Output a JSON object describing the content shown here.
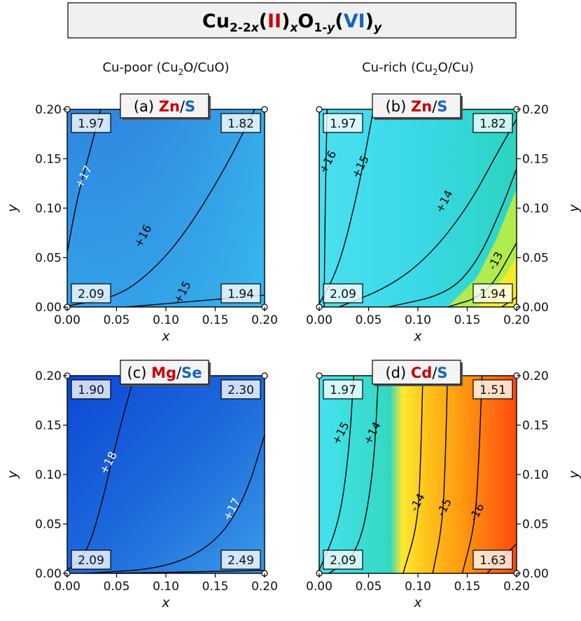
{
  "title": {
    "base1": "Cu",
    "sub1": "2-2",
    "subx": "x",
    "ii": "II",
    "mid": "O",
    "sub2": "1-",
    "suby": "y",
    "vi": "VI",
    "suby2": "y"
  },
  "columns": {
    "left": {
      "text": "Cu-poor (Cu",
      "sub": "2",
      "rest": "O/CuO)"
    },
    "right": {
      "text": "Cu-rich (Cu",
      "sub": "2",
      "rest": "O/Cu)"
    }
  },
  "colors": {
    "ii": "#c8000a",
    "vi": "#1565c0"
  },
  "chart_data": [
    {
      "type": "heatmap",
      "panel": "(a)",
      "element_ii": "Zn",
      "element_vi": "S",
      "xlabel": "x",
      "ylabel": "y",
      "xlim": [
        0,
        0.2
      ],
      "ylim": [
        0,
        0.2
      ],
      "xticks": [
        "0.00",
        "0.05",
        "0.10",
        "0.15",
        "0.20"
      ],
      "yticks": [
        "0.00",
        "0.05",
        "0.10",
        "0.15",
        "0.20"
      ],
      "corner_values": {
        "top_left": "1.97",
        "top_right": "1.82",
        "bottom_left": "2.09",
        "bottom_right": "1.94"
      },
      "contours": [
        {
          "label": "+17",
          "points": [
            [
              0,
              0.055
            ],
            [
              0.01,
              0.11
            ],
            [
              0.025,
              0.165
            ],
            [
              0.034,
              0.2
            ]
          ],
          "label_at": [
            0.02,
            0.13
          ],
          "label_color": "#ffffff"
        },
        {
          "label": "+16",
          "points": [
            [
              0,
              0.001
            ],
            [
              0.05,
              0.01
            ],
            [
              0.085,
              0.035
            ],
            [
              0.12,
              0.075
            ],
            [
              0.16,
              0.14
            ],
            [
              0.19,
              0.2
            ]
          ],
          "label_at": [
            0.08,
            0.07
          ],
          "label_color": "#000000"
        },
        {
          "label": "+15",
          "points": [
            [
              0.06,
              0
            ],
            [
              0.12,
              0.005
            ],
            [
              0.2,
              0.012
            ]
          ],
          "label_at": [
            0.12,
            0.013
          ],
          "label_color": "#000000"
        }
      ],
      "color_stops": {
        "top_left": "#2f86e0",
        "top_right": "#34a6ea",
        "bottom_left": "#2a8fe2",
        "bottom_right": "#32c2ef"
      }
    },
    {
      "type": "heatmap",
      "panel": "(b)",
      "element_ii": "Zn",
      "element_vi": "S",
      "xlabel": "x",
      "ylabel": "y",
      "xlim": [
        0,
        0.2
      ],
      "ylim": [
        0,
        0.2
      ],
      "xticks": [
        "0.00",
        "0.05",
        "0.10",
        "0.15",
        "0.20"
      ],
      "yticks": [
        "0.00",
        "0.05",
        "0.10",
        "0.15",
        "0.20"
      ],
      "corner_values": {
        "top_left": "1.97",
        "top_right": "1.82",
        "bottom_left": "2.09",
        "bottom_right": "1.94"
      },
      "contours": [
        {
          "label": "+16",
          "points": [
            [
              0.005,
              0
            ],
            [
              0.006,
              0.1
            ],
            [
              0.008,
              0.2
            ]
          ],
          "label_at": [
            0.012,
            0.145
          ],
          "label_color": "#000000"
        },
        {
          "label": "+15",
          "points": [
            [
              0,
              0.003
            ],
            [
              0.02,
              0.04
            ],
            [
              0.04,
              0.12
            ],
            [
              0.055,
              0.2
            ]
          ],
          "label_at": [
            0.045,
            0.14
          ],
          "label_color": "#000000"
        },
        {
          "label": "+14",
          "points": [
            [
              0.02,
              0
            ],
            [
              0.07,
              0.02
            ],
            [
              0.11,
              0.05
            ],
            [
              0.15,
              0.1
            ],
            [
              0.18,
              0.155
            ],
            [
              0.2,
              0.19
            ]
          ],
          "label_at": [
            0.13,
            0.105
          ],
          "label_color": "#000000"
        },
        {
          "label": "",
          "points": [
            [
              0.07,
              0
            ],
            [
              0.13,
              0.013
            ],
            [
              0.16,
              0.045
            ],
            [
              0.185,
              0.1
            ],
            [
              0.2,
              0.14
            ]
          ],
          "label_at": null,
          "label_color": "#000000"
        },
        {
          "label": "-13",
          "points": [
            [
              0.13,
              0
            ],
            [
              0.17,
              0.012
            ],
            [
              0.2,
              0.065
            ]
          ],
          "label_at": [
            0.182,
            0.045
          ],
          "label_color": "#000000"
        },
        {
          "label": "",
          "points": [
            [
              0.185,
              0
            ],
            [
              0.2,
              0.01
            ]
          ],
          "label_at": null,
          "label_color": "#000000"
        }
      ],
      "color_stops": {
        "top_left": "#3fe0ef",
        "top_right": "#2ed9c8",
        "bottom_left": "#44e6f0",
        "bottom_right": "#f2ec2a"
      }
    },
    {
      "type": "heatmap",
      "panel": "(c)",
      "element_ii": "Mg",
      "element_vi": "Se",
      "xlabel": "x",
      "ylabel": "y",
      "xlim": [
        0,
        0.2
      ],
      "ylim": [
        0,
        0.2
      ],
      "xticks": [
        "0.00",
        "0.05",
        "0.10",
        "0.15",
        "0.20"
      ],
      "yticks": [
        "0.00",
        "0.05",
        "0.10",
        "0.15",
        "0.20"
      ],
      "corner_values": {
        "top_left": "1.90",
        "top_right": "2.30",
        "bottom_left": "2.09",
        "bottom_right": "2.49"
      },
      "contours": [
        {
          "label": "+18",
          "points": [
            [
              0,
              0.003
            ],
            [
              0.02,
              0.02
            ],
            [
              0.035,
              0.07
            ],
            [
              0.05,
              0.135
            ],
            [
              0.068,
              0.2
            ]
          ],
          "label_at": [
            0.045,
            0.11
          ],
          "label_color": "#ffffff"
        },
        {
          "label": "+17",
          "points": [
            [
              0.02,
              0
            ],
            [
              0.1,
              0.005
            ],
            [
              0.15,
              0.03
            ],
            [
              0.18,
              0.075
            ],
            [
              0.2,
              0.14
            ]
          ],
          "label_at": [
            0.17,
            0.063
          ],
          "label_color": "#ffffff"
        },
        {
          "label": "",
          "points": [
            [
              0.05,
              0
            ],
            [
              0.2,
              0.003
            ]
          ],
          "label_at": null,
          "label_color": "#000000"
        }
      ],
      "color_stops": {
        "top_left": "#0d4fd8",
        "top_right": "#2a78e0",
        "bottom_left": "#1e66dc",
        "bottom_right": "#3b9ce8"
      }
    },
    {
      "type": "heatmap",
      "panel": "(d)",
      "element_ii": "Cd",
      "element_vi": "S",
      "xlabel": "x",
      "ylabel": "y",
      "xlim": [
        0,
        0.2
      ],
      "ylim": [
        0,
        0.2
      ],
      "xticks": [
        "0.00",
        "0.05",
        "0.10",
        "0.15",
        "0.20"
      ],
      "yticks": [
        "0.00",
        "0.05",
        "0.10",
        "0.15",
        "0.20"
      ],
      "corner_values": {
        "top_left": "1.97",
        "top_right": "1.51",
        "bottom_left": "2.09",
        "bottom_right": "1.63"
      },
      "contours": [
        {
          "label": "+15",
          "points": [
            [
              0,
              0.003
            ],
            [
              0.02,
              0.05
            ],
            [
              0.03,
              0.12
            ],
            [
              0.035,
              0.2
            ]
          ],
          "label_at": [
            0.025,
            0.14
          ],
          "label_color": "#000000"
        },
        {
          "label": "+14",
          "points": [
            [
              0.01,
              0
            ],
            [
              0.04,
              0.02
            ],
            [
              0.055,
              0.1
            ],
            [
              0.06,
              0.2
            ]
          ],
          "label_at": [
            0.057,
            0.14
          ],
          "label_color": "#000000"
        },
        {
          "label": "-14",
          "points": [
            [
              0.085,
              0
            ],
            [
              0.1,
              0.05
            ],
            [
              0.103,
              0.12
            ],
            [
              0.105,
              0.2
            ]
          ],
          "label_at": [
            0.103,
            0.07
          ],
          "label_color": "#000000"
        },
        {
          "label": "-15",
          "points": [
            [
              0.115,
              0
            ],
            [
              0.125,
              0.05
            ],
            [
              0.128,
              0.12
            ],
            [
              0.13,
              0.2
            ]
          ],
          "label_at": [
            0.13,
            0.065
          ],
          "label_color": "#000000"
        },
        {
          "label": "-16",
          "points": [
            [
              0.145,
              0
            ],
            [
              0.158,
              0.05
            ],
            [
              0.162,
              0.12
            ],
            [
              0.165,
              0.2
            ]
          ],
          "label_at": [
            0.163,
            0.06
          ],
          "label_color": "#000000"
        },
        {
          "label": "",
          "points": [
            [
              0.17,
              0
            ],
            [
              0.2,
              0.03
            ]
          ],
          "label_at": null,
          "label_color": "#000000"
        }
      ],
      "color_stops": {
        "top_left": "#40e0ef",
        "top_right": "#ff5a14",
        "bottom_left": "#42e2ee",
        "bottom_right": "#ff6a1a"
      }
    }
  ]
}
